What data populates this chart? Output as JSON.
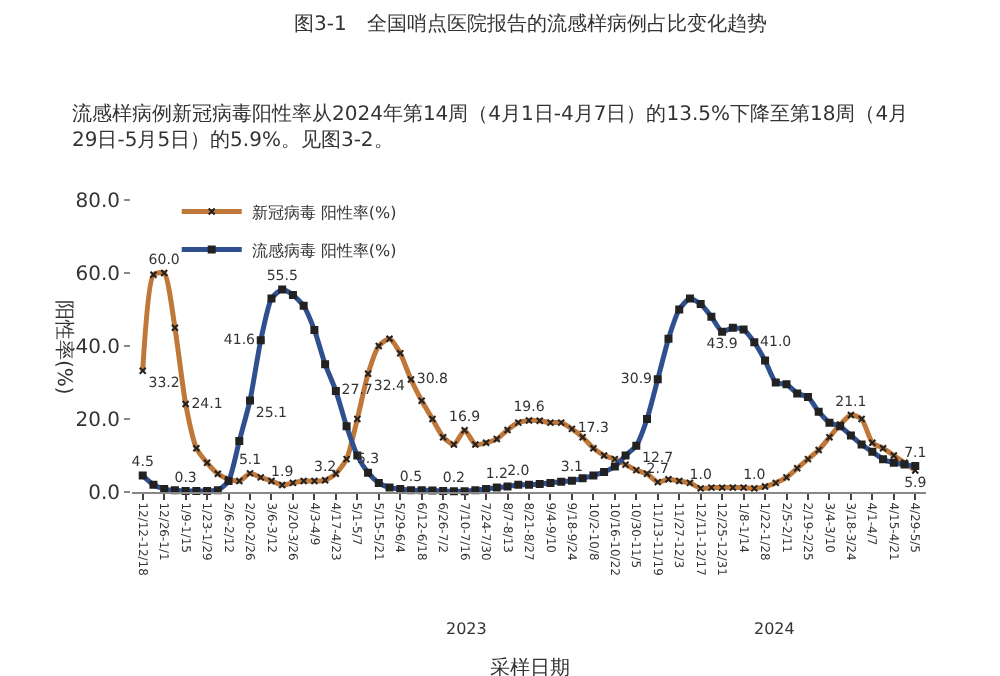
{
  "chart_data": {
    "type": "line",
    "title": "图3-1　全国哨点医院报告的流感样病例占比变化趋势",
    "subtitle": "流感样病例新冠病毒阳性率从2024年第14周（4月1日-4月7日）的13.5%下降至第18周（4月29日-5月5日）的5.9%。见图3-2。",
    "xlabel": "采样日期",
    "ylabel": "阳性率(%)",
    "annotations": [
      "2023",
      "2024"
    ],
    "categories": [
      "12/12-12/18",
      null,
      "12/26-1/1",
      null,
      "1/9-1/15",
      null,
      "1/23-1/29",
      null,
      "2/6-2/12",
      null,
      "2/20-2/26",
      null,
      "3/6-3/12",
      null,
      "3/20-3/26",
      null,
      "4/3-4/9",
      null,
      "4/17-4/23",
      null,
      "5/1-5/7",
      null,
      "5/15-5/21",
      null,
      "5/29-6/4",
      null,
      "6/12-6/18",
      null,
      "6/26-7/2",
      null,
      "7/10-7/16",
      null,
      "7/24-7/30",
      null,
      "8/7-8/13",
      null,
      "8/21-8/27",
      null,
      "9/4-9/10",
      null,
      "9/18-9/24",
      null,
      "10/2-10/8",
      null,
      "10/16-10/22",
      null,
      "10/30-11/5",
      null,
      "11/13-11/19",
      null,
      "11/27-12/3",
      null,
      "12/11-12/17",
      null,
      "12/25-12/31",
      null,
      "1/8-1/14",
      null,
      "1/22-1/28",
      null,
      "2/5-2/11",
      null,
      "2/19-2/25",
      null,
      "3/4-3/10",
      null,
      "3/18-3/24",
      null,
      "4/1-4/7",
      null,
      "4/15-4/21",
      null,
      "4/29-5/5"
    ],
    "series": [
      {
        "name": "新冠病毒 阳性率(%)",
        "color": "#c0783a",
        "marker": "cross",
        "values": [
          33.2,
          59.5,
          60.0,
          45,
          24.1,
          12,
          8,
          5,
          3.5,
          3,
          5.1,
          4,
          3,
          1.9,
          2.5,
          3,
          3,
          3.2,
          5,
          9,
          20,
          32.4,
          40,
          42,
          38,
          30.8,
          25,
          20,
          15,
          13,
          16.9,
          13,
          13.5,
          14.5,
          17,
          19,
          19.6,
          19.5,
          19,
          19,
          17.3,
          15,
          12,
          10,
          9,
          7.5,
          6,
          5,
          2.7,
          3.5,
          3,
          2.5,
          1.0,
          1.2,
          1.2,
          1.2,
          1.2,
          1.0,
          1.5,
          2.5,
          4,
          6.5,
          9,
          11.5,
          15,
          18.5,
          21.1,
          20,
          13.5,
          12,
          10,
          8,
          5.9
        ],
        "value_labels": [
          "33.2",
          null,
          "60.0",
          null,
          "24.1",
          null,
          null,
          null,
          null,
          null,
          "5.1",
          null,
          null,
          "1.9",
          null,
          null,
          null,
          "3.2",
          null,
          null,
          null,
          "32.4",
          null,
          null,
          null,
          "30.8",
          null,
          null,
          null,
          null,
          "16.9",
          null,
          null,
          null,
          null,
          null,
          "19.6",
          null,
          null,
          null,
          "17.3",
          null,
          null,
          null,
          null,
          null,
          null,
          null,
          "2.7",
          null,
          null,
          null,
          "1.0",
          null,
          null,
          null,
          null,
          "1.0",
          null,
          null,
          null,
          null,
          null,
          null,
          null,
          null,
          "21.1",
          null,
          null,
          null,
          null,
          null,
          "5.9"
        ]
      },
      {
        "name": "流感病毒 阳性率(%)",
        "color": "#2f4f8f",
        "marker": "square",
        "values": [
          4.5,
          2,
          0.8,
          0.5,
          0.3,
          0.3,
          0.3,
          0.5,
          3,
          14,
          25.1,
          41.6,
          53,
          55.5,
          54,
          51,
          44.4,
          35,
          27.7,
          18,
          10,
          5.3,
          2.5,
          1.2,
          0.8,
          0.5,
          0.5,
          0.4,
          0.3,
          0.2,
          0.2,
          0.5,
          0.8,
          1.2,
          1.5,
          2.0,
          2.0,
          2.2,
          2.5,
          2.8,
          3.1,
          3.8,
          4.5,
          5.5,
          7,
          10,
          12.7,
          20,
          30.9,
          42,
          50,
          53,
          51.5,
          48,
          43.9,
          45,
          44.5,
          41.0,
          36,
          30,
          29.5,
          27,
          26,
          22,
          19,
          18,
          15.5,
          13,
          11,
          9,
          8,
          7.5,
          7.1
        ],
        "value_labels": [
          "4.5",
          null,
          null,
          null,
          "0.3",
          null,
          null,
          null,
          null,
          null,
          "25.1",
          "41.6",
          null,
          "55.5",
          null,
          null,
          null,
          null,
          "27.7",
          null,
          null,
          "5.3",
          null,
          null,
          null,
          "0.5",
          null,
          null,
          null,
          "0.2",
          null,
          null,
          null,
          "1.2",
          null,
          "2.0",
          null,
          null,
          null,
          null,
          "3.1",
          null,
          null,
          null,
          null,
          null,
          "12.7",
          null,
          "30.9",
          null,
          null,
          null,
          null,
          null,
          "43.9",
          null,
          null,
          "41.0",
          null,
          null,
          null,
          null,
          null,
          null,
          null,
          null,
          null,
          null,
          null,
          null,
          null,
          null,
          "7.1"
        ]
      }
    ],
    "ylim": [
      0,
      80
    ],
    "yticks": [
      {
        "value": 0,
        "label": "0.0"
      },
      {
        "value": 20,
        "label": "20.0"
      },
      {
        "value": 40,
        "label": "40.0"
      },
      {
        "value": 60,
        "label": "60.0"
      },
      {
        "value": 80,
        "label": "80.0"
      }
    ],
    "legend": "top left"
  }
}
